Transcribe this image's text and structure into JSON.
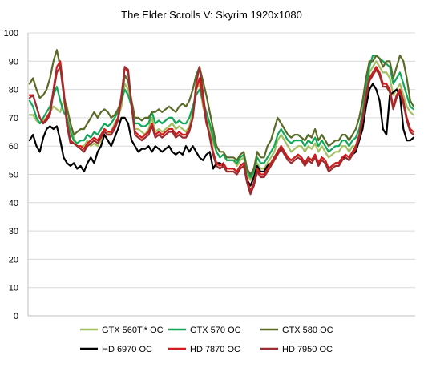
{
  "chart_data": {
    "type": "line",
    "title": "The Elder Scrolls V: Skyrim 1920x1080",
    "xlabel": "",
    "ylabel": "",
    "ylim": [
      0,
      100
    ],
    "yticks": [
      "0",
      "10",
      "20",
      "30",
      "40",
      "50",
      "60",
      "70",
      "80",
      "90",
      "100"
    ],
    "grid": "horizontal",
    "legend_position": "bottom",
    "series": [
      {
        "name": "GTX 560Ti* OC",
        "color": "#a3c060",
        "values": [
          71,
          71,
          69,
          68,
          69,
          70,
          72,
          74,
          73,
          72,
          76,
          74,
          68,
          63,
          60,
          60,
          60,
          62,
          60,
          61,
          60,
          62,
          65,
          64,
          65,
          68,
          70,
          74,
          82,
          80,
          74,
          66,
          66,
          65,
          64,
          66,
          70,
          65,
          66,
          65,
          66,
          67,
          68,
          66,
          67,
          66,
          65,
          67,
          72,
          80,
          82,
          74,
          70,
          66,
          61,
          58,
          56,
          57,
          55,
          55,
          55,
          53,
          55,
          56,
          50,
          48,
          50,
          54,
          52,
          52,
          54,
          56,
          58,
          62,
          64,
          62,
          60,
          58,
          59,
          60,
          60,
          58,
          60,
          59,
          61,
          58,
          60,
          58,
          56,
          57,
          58,
          58,
          60,
          60,
          58,
          60,
          60,
          62,
          68,
          76,
          86,
          88,
          90,
          88,
          86,
          86,
          84,
          78,
          80,
          82,
          78,
          74,
          72,
          71
        ]
      },
      {
        "name": "GTX 570 OC",
        "color": "#12a85a",
        "values": [
          76,
          74,
          70,
          68,
          70,
          72,
          74,
          78,
          81,
          76,
          72,
          70,
          65,
          62,
          61,
          62,
          62,
          64,
          63,
          65,
          64,
          66,
          68,
          67,
          68,
          70,
          72,
          76,
          80,
          78,
          74,
          68,
          68,
          67,
          67,
          68,
          72,
          68,
          69,
          68,
          69,
          70,
          70,
          68,
          69,
          68,
          68,
          70,
          74,
          78,
          80,
          76,
          72,
          68,
          63,
          58,
          56,
          57,
          55,
          55,
          55,
          54,
          56,
          57,
          51,
          49,
          51,
          56,
          54,
          54,
          56,
          58,
          60,
          64,
          66,
          64,
          62,
          61,
          62,
          62,
          62,
          60,
          62,
          61,
          63,
          60,
          62,
          60,
          58,
          59,
          60,
          60,
          62,
          62,
          60,
          62,
          63,
          66,
          72,
          80,
          88,
          92,
          92,
          91,
          90,
          89,
          88,
          82,
          84,
          86,
          82,
          78,
          74,
          73
        ]
      },
      {
        "name": "GTX 580 OC",
        "color": "#5a6b28",
        "values": [
          82,
          84,
          80,
          77,
          78,
          80,
          84,
          90,
          94,
          88,
          78,
          73,
          68,
          64,
          65,
          66,
          66,
          68,
          70,
          72,
          70,
          72,
          73,
          72,
          70,
          71,
          73,
          76,
          85,
          83,
          76,
          70,
          70,
          69,
          70,
          70,
          72,
          72,
          73,
          72,
          73,
          74,
          73,
          72,
          74,
          75,
          74,
          76,
          80,
          85,
          88,
          83,
          78,
          72,
          66,
          60,
          58,
          58,
          56,
          56,
          56,
          55,
          57,
          58,
          52,
          50,
          52,
          58,
          56,
          56,
          60,
          62,
          66,
          70,
          68,
          66,
          64,
          63,
          64,
          64,
          63,
          62,
          64,
          63,
          66,
          62,
          64,
          62,
          60,
          61,
          62,
          62,
          64,
          64,
          62,
          64,
          66,
          70,
          76,
          84,
          90,
          90,
          92,
          91,
          88,
          90,
          90,
          84,
          88,
          92,
          90,
          84,
          76,
          74
        ]
      },
      {
        "name": "HD 6970 OC",
        "color": "#000000",
        "values": [
          62,
          64,
          60,
          58,
          63,
          66,
          67,
          66,
          67,
          62,
          56,
          54,
          53,
          54,
          52,
          53,
          51,
          54,
          56,
          54,
          58,
          60,
          64,
          62,
          60,
          63,
          66,
          70,
          70,
          68,
          62,
          60,
          58,
          59,
          59,
          60,
          58,
          60,
          59,
          58,
          59,
          60,
          58,
          57,
          58,
          57,
          60,
          58,
          60,
          58,
          56,
          55,
          57,
          58,
          52,
          54,
          54,
          53,
          52,
          52,
          52,
          51,
          53,
          54,
          48,
          46,
          49,
          53,
          51,
          51,
          53,
          54,
          56,
          58,
          60,
          58,
          56,
          55,
          56,
          57,
          56,
          54,
          56,
          55,
          57,
          54,
          56,
          55,
          52,
          53,
          54,
          54,
          56,
          56,
          55,
          57,
          58,
          62,
          66,
          74,
          80,
          82,
          80,
          76,
          66,
          64,
          78,
          79,
          80,
          78,
          66,
          62,
          62,
          63
        ]
      },
      {
        "name": "HD 7870 OC",
        "color": "#d41c1c",
        "values": [
          78,
          78,
          74,
          70,
          68,
          70,
          72,
          80,
          88,
          90,
          80,
          68,
          62,
          61,
          60,
          60,
          59,
          61,
          62,
          63,
          62,
          64,
          66,
          65,
          65,
          67,
          70,
          78,
          88,
          86,
          74,
          65,
          64,
          63,
          64,
          65,
          68,
          64,
          65,
          64,
          65,
          66,
          66,
          64,
          65,
          64,
          64,
          66,
          70,
          80,
          84,
          76,
          68,
          64,
          58,
          54,
          53,
          54,
          52,
          52,
          52,
          51,
          53,
          54,
          48,
          44,
          47,
          52,
          50,
          50,
          52,
          54,
          56,
          58,
          60,
          58,
          56,
          55,
          56,
          57,
          56,
          54,
          56,
          55,
          57,
          54,
          56,
          55,
          52,
          53,
          54,
          54,
          56,
          57,
          56,
          58,
          60,
          64,
          70,
          78,
          84,
          86,
          88,
          86,
          82,
          82,
          80,
          74,
          78,
          80,
          76,
          70,
          66,
          65
        ]
      },
      {
        "name": "HD 7950 OC",
        "color": "#9b2d30",
        "values": [
          77,
          78,
          74,
          70,
          68,
          69,
          71,
          79,
          86,
          88,
          79,
          67,
          61,
          61,
          60,
          59,
          58,
          60,
          61,
          62,
          61,
          63,
          65,
          64,
          64,
          66,
          69,
          77,
          88,
          87,
          74,
          64,
          63,
          62,
          63,
          64,
          67,
          63,
          64,
          63,
          64,
          65,
          65,
          63,
          64,
          63,
          63,
          65,
          70,
          82,
          88,
          79,
          69,
          63,
          57,
          53,
          52,
          53,
          51,
          51,
          51,
          50,
          52,
          53,
          47,
          43,
          46,
          51,
          49,
          49,
          51,
          53,
          55,
          57,
          59,
          57,
          55,
          54,
          55,
          56,
          55,
          53,
          55,
          54,
          56,
          53,
          55,
          54,
          51,
          52,
          53,
          53,
          55,
          56,
          55,
          57,
          59,
          63,
          69,
          77,
          83,
          85,
          87,
          85,
          81,
          81,
          79,
          73,
          77,
          79,
          75,
          69,
          65,
          64
        ]
      }
    ]
  }
}
